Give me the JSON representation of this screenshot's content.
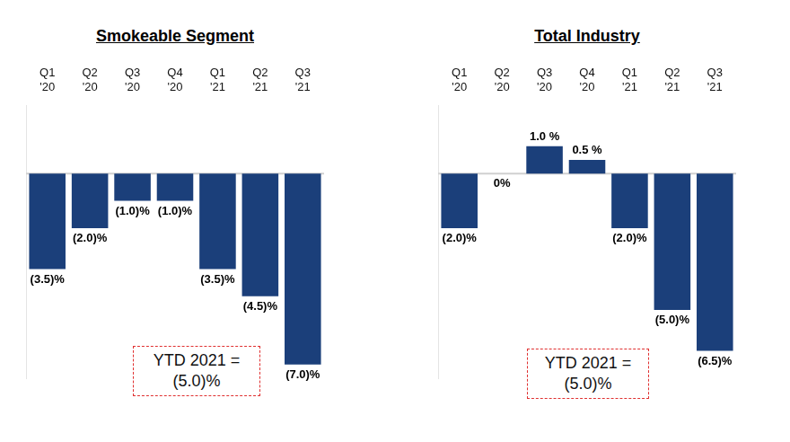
{
  "chart_data": [
    {
      "type": "bar",
      "title": "Smokeable Segment",
      "categories": [
        "Q1 '20",
        "Q2 '20",
        "Q3 '20",
        "Q4 '20",
        "Q1 '21",
        "Q2 '21",
        "Q3 '21"
      ],
      "values": [
        -3.5,
        -2.0,
        -1.0,
        -1.0,
        -3.5,
        -4.5,
        -7.0
      ],
      "value_labels": [
        "(3.5)%",
        "(2.0)%",
        "(1.0)%",
        "(1.0)%",
        "(3.5)%",
        "(4.5)%",
        "(7.0)%"
      ],
      "color": "#1b3f7a",
      "ylim": [
        -7.5,
        2.5
      ],
      "data_labels": true,
      "tick_labels": "x",
      "grid": false,
      "annotations": [
        "YTD 2021 =",
        "(5.0)%"
      ]
    },
    {
      "type": "bar",
      "title": "Total Industry",
      "categories": [
        "Q1 '20",
        "Q2 '20",
        "Q3 '20",
        "Q4 '20",
        "Q1 '21",
        "Q2 '21",
        "Q3 '21"
      ],
      "values": [
        -2.0,
        0,
        1.0,
        0.5,
        -2.0,
        -5.0,
        -6.5
      ],
      "value_labels": [
        "(2.0)%",
        "0%",
        "1.0 %",
        "0.5 %",
        "(2.0)%",
        "(5.0)%",
        "(6.5)%"
      ],
      "color": "#1b3f7a",
      "ylim": [
        -7.5,
        2.5
      ],
      "data_labels": true,
      "tick_labels": "x",
      "grid": false,
      "annotations": [
        "YTD 2021 =",
        "(5.0)%"
      ]
    }
  ]
}
